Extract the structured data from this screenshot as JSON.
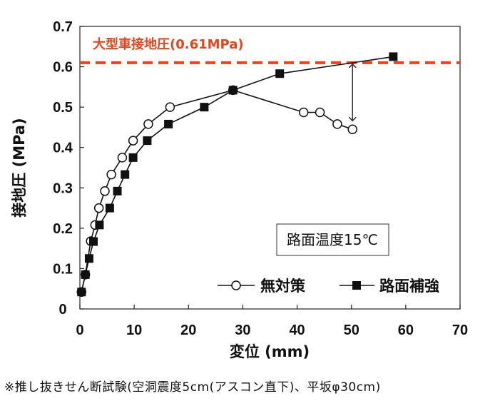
{
  "chart_data": {
    "type": "line",
    "xlabel": "変位 (mm)",
    "ylabel": "接地圧 (MPa)",
    "xlim": [
      0,
      70
    ],
    "ylim": [
      0,
      0.7
    ],
    "x_ticks": [
      "0",
      "10",
      "20",
      "30",
      "40",
      "50",
      "60",
      "70"
    ],
    "y_ticks": [
      "0",
      "0.1",
      "0.2",
      "0.3",
      "0.4",
      "0.5",
      "0.6",
      "0.7"
    ],
    "reference_line": {
      "label": "大型車接地圧(0.61MPa)",
      "value": 0.61,
      "color": "#e8441c"
    },
    "annotation_text": "路面温度15℃",
    "series": [
      {
        "name": "無対策",
        "marker": "open-circle",
        "points": [
          [
            0.3,
            0.042
          ],
          [
            1.0,
            0.085
          ],
          [
            2.0,
            0.168
          ],
          [
            2.8,
            0.208
          ],
          [
            3.5,
            0.25
          ],
          [
            4.6,
            0.292
          ],
          [
            5.8,
            0.333
          ],
          [
            7.8,
            0.375
          ],
          [
            9.8,
            0.417
          ],
          [
            12.6,
            0.458
          ],
          [
            16.6,
            0.5
          ],
          [
            28.2,
            0.542
          ],
          [
            41.2,
            0.487
          ],
          [
            44.2,
            0.487
          ],
          [
            47.4,
            0.458
          ],
          [
            50.2,
            0.445
          ]
        ]
      },
      {
        "name": "路面補強",
        "marker": "filled-square",
        "points": [
          [
            0.3,
            0.042
          ],
          [
            1.0,
            0.085
          ],
          [
            1.7,
            0.125
          ],
          [
            2.5,
            0.167
          ],
          [
            3.6,
            0.208
          ],
          [
            5.5,
            0.25
          ],
          [
            6.9,
            0.292
          ],
          [
            8.3,
            0.333
          ],
          [
            9.8,
            0.375
          ],
          [
            12.4,
            0.417
          ],
          [
            16.3,
            0.458
          ],
          [
            22.9,
            0.5
          ],
          [
            28.2,
            0.542
          ],
          [
            36.8,
            0.583
          ],
          [
            57.7,
            0.625
          ]
        ]
      }
    ],
    "arrow": {
      "x": 50.2,
      "from": 0.61,
      "to": 0.445
    }
  },
  "footnote": "※推し抜きせん断試験(空洞震度5cm(アスコン直下)、平坂φ30cm)"
}
